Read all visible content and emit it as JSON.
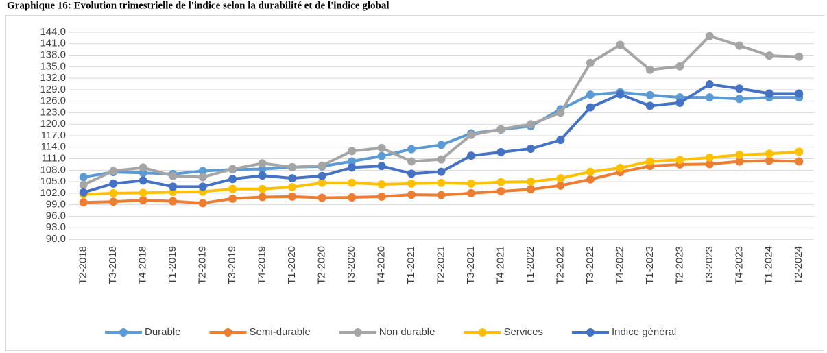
{
  "chart_data": {
    "type": "line",
    "title": "Graphique 16: Evolution trimestrielle de l'indice selon la durabilité et de l'indice global",
    "categories": [
      "T2-2018",
      "T3-2018",
      "T4-2018",
      "T1-2019",
      "T2-2019",
      "T3-2019",
      "T4-2019",
      "T1-2020",
      "T2-2020",
      "T3-2020",
      "T4-2020",
      "T1-2021",
      "T2-2021",
      "T3-2021",
      "T4-2021",
      "T1-2022",
      "T2-2022",
      "T3-2022",
      "T4-2022",
      "T1-2023",
      "T2-2023",
      "T3-2023",
      "T4-2023",
      "T1-2024",
      "T2-2024"
    ],
    "series": [
      {
        "name": "Durable",
        "color": "#5b9bd5",
        "values": [
          106.2,
          107.5,
          107.3,
          107.0,
          107.8,
          108.2,
          108.3,
          108.8,
          109.0,
          110.3,
          111.7,
          113.5,
          114.6,
          117.6,
          118.6,
          119.5,
          123.9,
          127.7,
          128.3,
          127.6,
          127.0,
          127.0,
          126.6,
          127.0,
          127.0
        ]
      },
      {
        "name": "Semi-durable",
        "color": "#ed7d31",
        "values": [
          99.6,
          99.8,
          100.2,
          99.9,
          99.4,
          100.6,
          101.0,
          101.1,
          100.8,
          100.9,
          101.1,
          101.6,
          101.5,
          102.0,
          102.5,
          103.0,
          104.0,
          105.6,
          107.5,
          109.1,
          109.5,
          109.6,
          110.3,
          110.5,
          110.3
        ]
      },
      {
        "name": "Non durable",
        "color": "#a5a5a5",
        "values": [
          104.2,
          107.8,
          108.7,
          106.5,
          106.2,
          108.3,
          109.8,
          108.8,
          109.2,
          113.0,
          113.8,
          110.3,
          110.8,
          117.2,
          118.7,
          120.0,
          123.0,
          136.0,
          140.7,
          134.2,
          135.1,
          143.0,
          140.5,
          137.9,
          137.6
        ]
      },
      {
        "name": "Services",
        "color": "#ffc000",
        "values": [
          101.7,
          102.0,
          102.1,
          102.3,
          102.4,
          103.1,
          103.1,
          103.6,
          104.7,
          104.7,
          104.3,
          104.5,
          104.7,
          104.5,
          104.9,
          105.0,
          105.9,
          107.6,
          108.6,
          110.3,
          110.7,
          111.3,
          112.0,
          112.3,
          112.8
        ]
      },
      {
        "name": "Indice général",
        "color": "#4472c4",
        "values": [
          102.2,
          104.5,
          105.3,
          103.7,
          103.7,
          105.7,
          106.6,
          105.9,
          106.5,
          108.7,
          109.1,
          107.1,
          107.6,
          111.8,
          112.7,
          113.6,
          115.9,
          124.4,
          127.8,
          124.8,
          125.6,
          130.4,
          129.3,
          128.0,
          128.0
        ]
      }
    ],
    "ylim": [
      90,
      144
    ],
    "yticks": [
      {
        "value": 90,
        "label": "90.0"
      },
      {
        "value": 93,
        "label": "93.0"
      },
      {
        "value": 96,
        "label": "96.0"
      },
      {
        "value": 99,
        "label": "99.0"
      },
      {
        "value": 102,
        "label": "102.0"
      },
      {
        "value": 105,
        "label": "105.0"
      },
      {
        "value": 108,
        "label": "108.0"
      },
      {
        "value": 111,
        "label": "111.0"
      },
      {
        "value": 114,
        "label": "114.0"
      },
      {
        "value": 117,
        "label": "117.0"
      },
      {
        "value": 120,
        "label": "120.0"
      },
      {
        "value": 123,
        "label": "123.0"
      },
      {
        "value": 126,
        "label": "126.0"
      },
      {
        "value": 129,
        "label": "129.0"
      },
      {
        "value": 132,
        "label": "132.0"
      },
      {
        "value": 135,
        "label": "135.0"
      },
      {
        "value": 138,
        "label": "138.0"
      },
      {
        "value": 141,
        "label": "141.0"
      },
      {
        "value": 144,
        "label": "144.0"
      }
    ],
    "grid": true,
    "legend": "bottom"
  }
}
